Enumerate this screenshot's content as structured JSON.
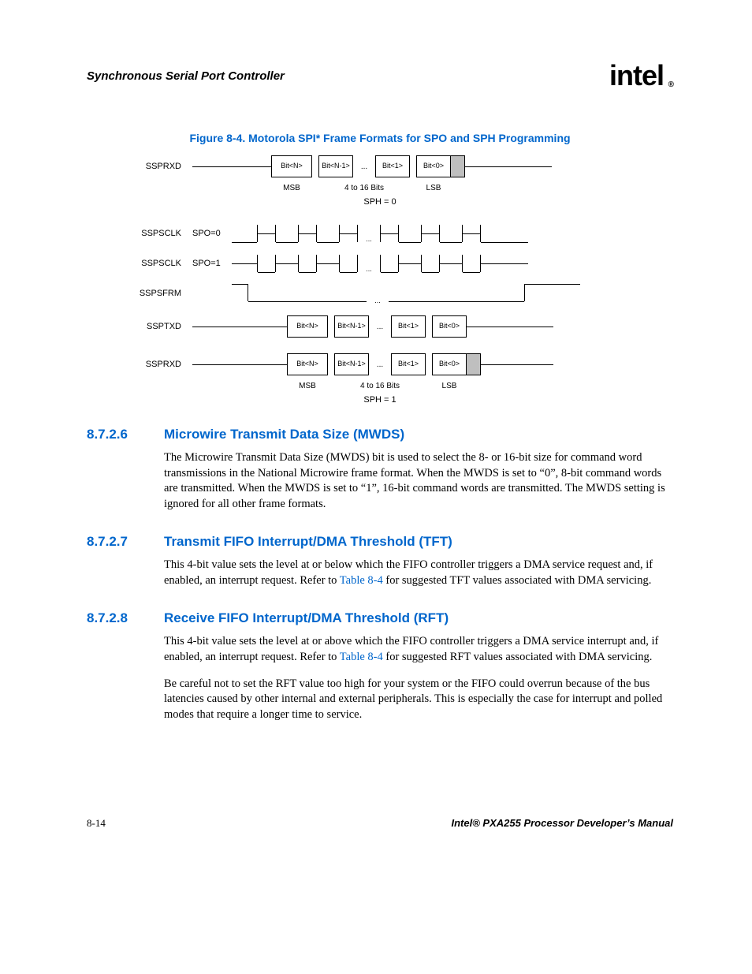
{
  "header": {
    "title": "Synchronous Serial Port Controller",
    "logo_text": "intel",
    "logo_reg": "®"
  },
  "figure": {
    "caption": "Figure 8-4. Motorola SPI* Frame Formats for SPO and SPH Programming",
    "signals": {
      "ssprxd": "SSPRXD",
      "sspsclk": "SSPSCLK",
      "sspsfrm": "SSPSFRM",
      "ssptxd": "SSPTXD"
    },
    "spo0": "SPO=0",
    "spo1": "SPO=1",
    "bitN": "Bit<N>",
    "bitN1": "Bit<N-1>",
    "bit1": "Bit<1>",
    "bit0": "Bit<0>",
    "dots": "...",
    "msb": "MSB",
    "range": "4 to 16 Bits",
    "lsb": "LSB",
    "sph0": "SPH = 0",
    "sph1": "SPH = 1"
  },
  "sections": [
    {
      "num": "8.7.2.6",
      "title": "Microwire Transmit Data Size (MWDS)",
      "paras": [
        "The Microwire Transmit Data Size (MWDS) bit is used to select the 8- or 16-bit size for command word transmissions in the National Microwire frame format. When the MWDS is set to “0”, 8-bit command words are transmitted. When the MWDS is set to “1”, 16-bit command words are transmitted. The MWDS setting is ignored for all other frame formats."
      ]
    },
    {
      "num": "8.7.2.7",
      "title": "Transmit FIFO Interrupt/DMA Threshold (TFT)",
      "paras": [
        "This 4-bit value sets the level at or below which the FIFO controller triggers a DMA service request and, if enabled, an interrupt request. Refer to {LINK} for suggested TFT values associated with DMA servicing."
      ]
    },
    {
      "num": "8.7.2.8",
      "title": "Receive FIFO Interrupt/DMA Threshold (RFT)",
      "paras": [
        "This 4-bit value sets the level at or above which the FIFO controller triggers a DMA service interrupt and, if enabled, an interrupt request. Refer to {LINK} for suggested RFT values associated with DMA servicing.",
        "Be careful not to set the RFT value too high for your system or the FIFO could overrun because of the bus latencies caused by other internal and external peripherals. This is especially the case for interrupt and polled modes that require a longer time to service."
      ]
    }
  ],
  "link_text": "Table 8-4",
  "footer": {
    "left": "8-14",
    "right": "Intel® PXA255 Processor Developer’s Manual"
  },
  "colors": {
    "link": "#0066cc",
    "gray": "#bfbfbf"
  }
}
